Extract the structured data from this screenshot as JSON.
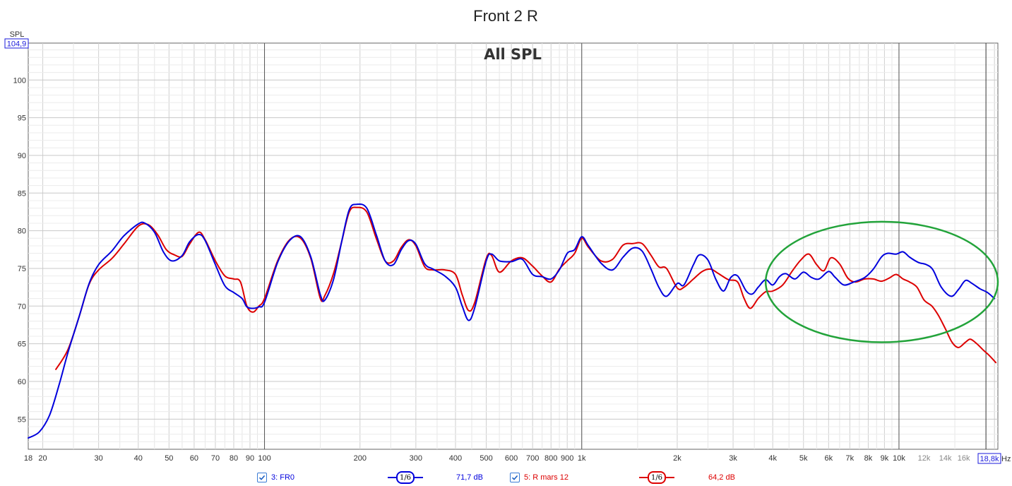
{
  "header": {
    "title": "Front 2 R",
    "subtitle": "All SPL"
  },
  "axes": {
    "y_label": "SPL",
    "y_max_readout": "104,9",
    "x_unit": "Hz",
    "x_max_readout": "18,8k"
  },
  "legend": [
    {
      "check_id": "3: FR0",
      "smoothing": "1/6",
      "level": "71,7 dB",
      "color": "#0000dd"
    },
    {
      "check_id": "5: R mars 12",
      "smoothing": "1/6",
      "level": "64,2 dB",
      "color": "#dd0000"
    }
  ],
  "annotation": {
    "shape": "ellipse",
    "color": "#22a33a",
    "x_range_hz": [
      3800,
      20500
    ],
    "y_range_db": [
      65.2,
      81.2
    ]
  },
  "chart_data": {
    "type": "line",
    "title": "Front 2 R",
    "subtitle": "All SPL",
    "xscale": "log",
    "xlim": [
      18,
      20500
    ],
    "ylim": [
      51,
      104.9
    ],
    "xlabel": "Hz",
    "ylabel": "SPL",
    "grid": true,
    "x_ticks": [
      {
        "v": 18,
        "l": "18"
      },
      {
        "v": 20,
        "l": "20"
      },
      {
        "v": 30,
        "l": "30"
      },
      {
        "v": 40,
        "l": "40"
      },
      {
        "v": 50,
        "l": "50"
      },
      {
        "v": 60,
        "l": "60"
      },
      {
        "v": 70,
        "l": "70"
      },
      {
        "v": 80,
        "l": "80"
      },
      {
        "v": 90,
        "l": "90"
      },
      {
        "v": 100,
        "l": "100"
      },
      {
        "v": 200,
        "l": "200"
      },
      {
        "v": 300,
        "l": "300"
      },
      {
        "v": 400,
        "l": "400"
      },
      {
        "v": 500,
        "l": "500"
      },
      {
        "v": 600,
        "l": "600"
      },
      {
        "v": 700,
        "l": "700"
      },
      {
        "v": 800,
        "l": "800"
      },
      {
        "v": 900,
        "l": "900"
      },
      {
        "v": 1000,
        "l": "1k"
      },
      {
        "v": 2000,
        "l": "2k"
      },
      {
        "v": 3000,
        "l": "3k"
      },
      {
        "v": 4000,
        "l": "4k"
      },
      {
        "v": 5000,
        "l": "5k"
      },
      {
        "v": 6000,
        "l": "6k"
      },
      {
        "v": 7000,
        "l": "7k"
      },
      {
        "v": 8000,
        "l": "8k"
      },
      {
        "v": 9000,
        "l": "9k"
      },
      {
        "v": 10000,
        "l": "10k"
      },
      {
        "v": 12000,
        "l": "12k",
        "minor": true
      },
      {
        "v": 14000,
        "l": "14k",
        "minor": true
      },
      {
        "v": 16000,
        "l": "16k",
        "minor": true
      }
    ],
    "y_ticks": [
      55,
      60,
      65,
      70,
      75,
      80,
      85,
      90,
      95,
      100
    ],
    "series": [
      {
        "name": "3: FR0",
        "color": "#0000dd",
        "points": [
          [
            18,
            52.5
          ],
          [
            19.5,
            53.3
          ],
          [
            21,
            55.5
          ],
          [
            22.5,
            59.5
          ],
          [
            24,
            63.8
          ],
          [
            26,
            68.5
          ],
          [
            28,
            73.0
          ],
          [
            30,
            75.5
          ],
          [
            33,
            77.3
          ],
          [
            36,
            79.3
          ],
          [
            40,
            80.9
          ],
          [
            42,
            81.0
          ],
          [
            45,
            79.8
          ],
          [
            48,
            77.2
          ],
          [
            51,
            76.0
          ],
          [
            55,
            76.7
          ],
          [
            58,
            78.5
          ],
          [
            62,
            79.5
          ],
          [
            65,
            78.7
          ],
          [
            70,
            75.5
          ],
          [
            75,
            72.7
          ],
          [
            80,
            71.8
          ],
          [
            85,
            71.0
          ],
          [
            88,
            69.9
          ],
          [
            92,
            69.7
          ],
          [
            96,
            69.9
          ],
          [
            100,
            70.5
          ],
          [
            110,
            75.8
          ],
          [
            120,
            78.7
          ],
          [
            130,
            79.2
          ],
          [
            140,
            76.5
          ],
          [
            150,
            71.5
          ],
          [
            155,
            70.8
          ],
          [
            165,
            73.5
          ],
          [
            175,
            78.5
          ],
          [
            185,
            82.8
          ],
          [
            195,
            83.5
          ],
          [
            210,
            83.0
          ],
          [
            225,
            79.5
          ],
          [
            240,
            76.0
          ],
          [
            255,
            75.5
          ],
          [
            270,
            77.5
          ],
          [
            285,
            78.7
          ],
          [
            300,
            78.2
          ],
          [
            320,
            75.6
          ],
          [
            340,
            74.9
          ],
          [
            370,
            74.0
          ],
          [
            400,
            72.5
          ],
          [
            420,
            70.0
          ],
          [
            440,
            68.1
          ],
          [
            460,
            69.8
          ],
          [
            500,
            76.0
          ],
          [
            520,
            76.9
          ],
          [
            550,
            76.0
          ],
          [
            600,
            75.9
          ],
          [
            650,
            76.2
          ],
          [
            700,
            74.2
          ],
          [
            750,
            73.9
          ],
          [
            800,
            73.6
          ],
          [
            850,
            74.8
          ],
          [
            900,
            77.0
          ],
          [
            950,
            77.5
          ],
          [
            1000,
            79.2
          ],
          [
            1050,
            78.0
          ],
          [
            1150,
            75.7
          ],
          [
            1250,
            74.8
          ],
          [
            1350,
            76.5
          ],
          [
            1450,
            77.7
          ],
          [
            1550,
            77.3
          ],
          [
            1650,
            75.0
          ],
          [
            1750,
            72.5
          ],
          [
            1850,
            71.3
          ],
          [
            2000,
            73.0
          ],
          [
            2100,
            72.8
          ],
          [
            2250,
            75.5
          ],
          [
            2350,
            76.8
          ],
          [
            2500,
            76.1
          ],
          [
            2650,
            73.5
          ],
          [
            2800,
            72.0
          ],
          [
            2950,
            73.8
          ],
          [
            3100,
            74.0
          ],
          [
            3300,
            72.0
          ],
          [
            3450,
            71.6
          ],
          [
            3600,
            72.5
          ],
          [
            3800,
            73.5
          ],
          [
            4000,
            72.8
          ],
          [
            4200,
            73.9
          ],
          [
            4400,
            74.3
          ],
          [
            4700,
            73.6
          ],
          [
            5000,
            74.5
          ],
          [
            5300,
            73.8
          ],
          [
            5600,
            73.6
          ],
          [
            6000,
            74.6
          ],
          [
            6300,
            73.8
          ],
          [
            6700,
            72.8
          ],
          [
            7200,
            73.2
          ],
          [
            7800,
            73.8
          ],
          [
            8300,
            74.9
          ],
          [
            8800,
            76.5
          ],
          [
            9200,
            77.0
          ],
          [
            9800,
            76.9
          ],
          [
            10300,
            77.2
          ],
          [
            10800,
            76.5
          ],
          [
            11500,
            75.8
          ],
          [
            12200,
            75.5
          ],
          [
            12800,
            74.8
          ],
          [
            13600,
            72.5
          ],
          [
            14600,
            71.3
          ],
          [
            15400,
            72.2
          ],
          [
            16200,
            73.4
          ],
          [
            17000,
            73.0
          ],
          [
            18000,
            72.3
          ],
          [
            19000,
            71.8
          ],
          [
            20000,
            71.0
          ]
        ]
      },
      {
        "name": "5: R mars 12",
        "color": "#dd0000",
        "points": [
          [
            22,
            61.6
          ],
          [
            24,
            64.2
          ],
          [
            26,
            68.5
          ],
          [
            28,
            72.9
          ],
          [
            30,
            74.8
          ],
          [
            33,
            76.3
          ],
          [
            36,
            78.2
          ],
          [
            40,
            80.6
          ],
          [
            43,
            80.8
          ],
          [
            46,
            79.5
          ],
          [
            49,
            77.5
          ],
          [
            52,
            76.8
          ],
          [
            55,
            76.6
          ],
          [
            58,
            78.2
          ],
          [
            62,
            79.8
          ],
          [
            65,
            78.8
          ],
          [
            70,
            76.0
          ],
          [
            75,
            74.0
          ],
          [
            80,
            73.6
          ],
          [
            84,
            73.2
          ],
          [
            88,
            70.0
          ],
          [
            92,
            69.2
          ],
          [
            96,
            70.0
          ],
          [
            100,
            71.0
          ],
          [
            110,
            76.0
          ],
          [
            120,
            78.8
          ],
          [
            130,
            79.0
          ],
          [
            140,
            76.3
          ],
          [
            150,
            71.0
          ],
          [
            155,
            71.4
          ],
          [
            165,
            74.3
          ],
          [
            175,
            78.5
          ],
          [
            185,
            82.5
          ],
          [
            195,
            83.1
          ],
          [
            210,
            82.5
          ],
          [
            225,
            79.0
          ],
          [
            240,
            76.0
          ],
          [
            255,
            76.0
          ],
          [
            270,
            77.8
          ],
          [
            285,
            78.8
          ],
          [
            300,
            78.0
          ],
          [
            320,
            75.2
          ],
          [
            340,
            74.8
          ],
          [
            370,
            74.8
          ],
          [
            400,
            74.2
          ],
          [
            420,
            71.5
          ],
          [
            440,
            69.4
          ],
          [
            460,
            70.5
          ],
          [
            500,
            76.3
          ],
          [
            520,
            76.7
          ],
          [
            550,
            74.5
          ],
          [
            600,
            76.0
          ],
          [
            650,
            76.4
          ],
          [
            700,
            75.3
          ],
          [
            750,
            74.0
          ],
          [
            800,
            73.2
          ],
          [
            850,
            74.9
          ],
          [
            900,
            76.0
          ],
          [
            950,
            77.0
          ],
          [
            1000,
            79.0
          ],
          [
            1050,
            77.8
          ],
          [
            1150,
            76.0
          ],
          [
            1250,
            76.2
          ],
          [
            1350,
            78.1
          ],
          [
            1450,
            78.3
          ],
          [
            1550,
            78.3
          ],
          [
            1650,
            76.8
          ],
          [
            1750,
            75.2
          ],
          [
            1850,
            75.0
          ],
          [
            2000,
            72.4
          ],
          [
            2100,
            72.5
          ],
          [
            2250,
            73.6
          ],
          [
            2400,
            74.6
          ],
          [
            2550,
            74.9
          ],
          [
            2700,
            74.3
          ],
          [
            2900,
            73.5
          ],
          [
            3100,
            73.2
          ],
          [
            3250,
            71.0
          ],
          [
            3400,
            69.7
          ],
          [
            3600,
            71.0
          ],
          [
            3800,
            71.9
          ],
          [
            4000,
            72.0
          ],
          [
            4300,
            72.8
          ],
          [
            4600,
            74.6
          ],
          [
            4900,
            76.1
          ],
          [
            5200,
            76.9
          ],
          [
            5500,
            75.5
          ],
          [
            5800,
            74.7
          ],
          [
            6100,
            76.4
          ],
          [
            6500,
            75.6
          ],
          [
            6900,
            73.7
          ],
          [
            7300,
            73.2
          ],
          [
            7800,
            73.6
          ],
          [
            8300,
            73.6
          ],
          [
            8800,
            73.3
          ],
          [
            9300,
            73.7
          ],
          [
            9800,
            74.2
          ],
          [
            10300,
            73.6
          ],
          [
            10800,
            73.2
          ],
          [
            11400,
            72.5
          ],
          [
            12000,
            70.8
          ],
          [
            12700,
            70.0
          ],
          [
            13300,
            68.8
          ],
          [
            14000,
            67.0
          ],
          [
            14700,
            65.2
          ],
          [
            15400,
            64.5
          ],
          [
            16200,
            65.2
          ],
          [
            16800,
            65.6
          ],
          [
            17600,
            65.0
          ],
          [
            18400,
            64.2
          ],
          [
            19200,
            63.5
          ],
          [
            20200,
            62.5
          ]
        ]
      }
    ]
  }
}
